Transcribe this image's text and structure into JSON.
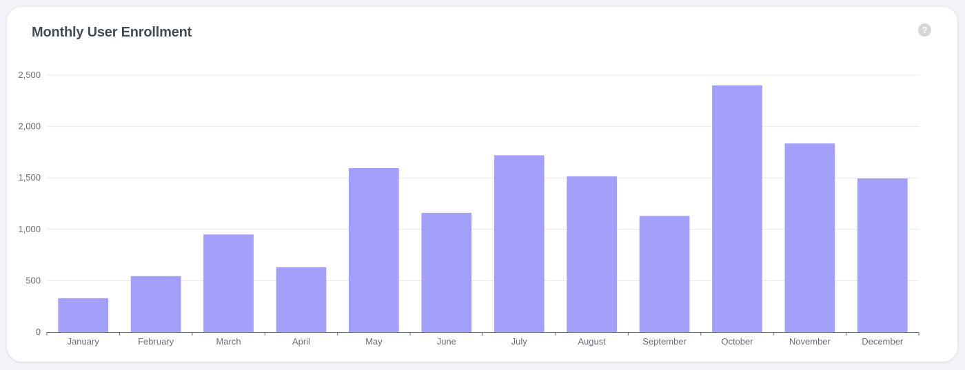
{
  "card": {
    "title": "Monthly User Enrollment",
    "help_icon": "?"
  },
  "colors": {
    "bar": "#a3a0fb",
    "grid": "#e6e8ee",
    "axis": "#6b6f76",
    "title": "#444b53"
  },
  "chart_data": {
    "type": "bar",
    "title": "Monthly User Enrollment",
    "xlabel": "",
    "ylabel": "",
    "categories": [
      "January",
      "February",
      "March",
      "April",
      "May",
      "June",
      "July",
      "August",
      "September",
      "October",
      "November",
      "December"
    ],
    "values": [
      330,
      545,
      950,
      630,
      1595,
      1160,
      1720,
      1515,
      1130,
      2400,
      1835,
      1495
    ],
    "ylim": [
      0,
      2500
    ],
    "yticks": [
      0,
      500,
      1000,
      1500,
      2000,
      2500
    ],
    "ytick_labels": [
      "0",
      "500",
      "1,000",
      "1,500",
      "2,000",
      "2,500"
    ],
    "grid": true,
    "legend": "none"
  }
}
